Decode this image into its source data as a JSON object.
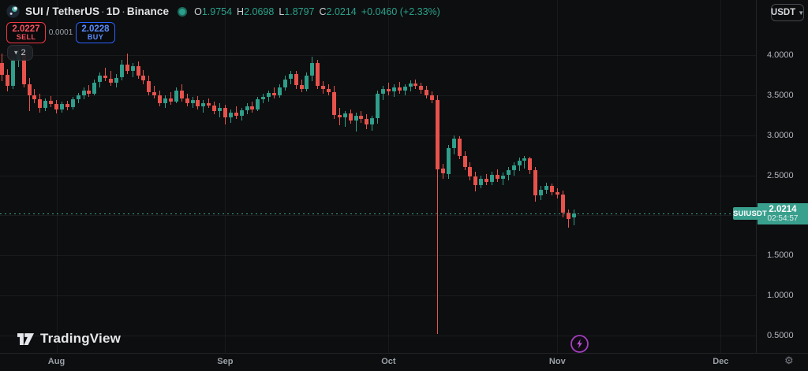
{
  "header": {
    "symbol": "SUI / TetherUS",
    "separator": "·",
    "interval": "1D",
    "exchange": "Binance",
    "ohlc": {
      "o_label": "O",
      "o": "1.9754",
      "h_label": "H",
      "h": "2.0698",
      "l_label": "L",
      "l": "1.8797",
      "c_label": "C",
      "c": "2.0214",
      "change": "+0.0460 (+2.33%)"
    },
    "currency_button_label": "USDT"
  },
  "trade_panel": {
    "sell_price": "2.0227",
    "sell_label": "SELL",
    "spread": "0.0001",
    "buy_price": "2.0228",
    "buy_label": "BUY",
    "sell_color": "#f23645",
    "buy_color": "#2962ff"
  },
  "toolbar": {
    "collapse_count": "2"
  },
  "footer": {
    "logo_text": "TradingView"
  },
  "chart_data": {
    "type": "candlestick",
    "title": "SUI / TetherUS · 1D · Binance",
    "symbol": "SUIUSDT",
    "interval": "1D",
    "up_color": "#2f9e8b",
    "down_color": "#e8524c",
    "accent_teal": "#3aa08e",
    "marker_purple": "#a43ec0",
    "grid_on": true,
    "price_axis": {
      "ticks": [
        {
          "label": "4.0000",
          "value": 4.0
        },
        {
          "label": "3.5000",
          "value": 3.5
        },
        {
          "label": "3.0000",
          "value": 3.0
        },
        {
          "label": "2.5000",
          "value": 2.5
        },
        {
          "label": "1.5000",
          "value": 1.5
        },
        {
          "label": "1.0000",
          "value": 1.0
        },
        {
          "label": "0.5000",
          "value": 0.5
        }
      ],
      "grid_values": [
        4.0,
        3.5,
        3.0,
        2.5,
        2.0,
        1.5,
        1.0,
        0.5
      ],
      "visible_range": [
        0.35,
        4.15
      ]
    },
    "time_axis": {
      "months": [
        {
          "label": "Aug",
          "day_index": 10
        },
        {
          "label": "Sep",
          "day_index": 41
        },
        {
          "label": "Oct",
          "day_index": 71
        },
        {
          "label": "Nov",
          "day_index": 102
        },
        {
          "label": "Dec",
          "day_index": 132
        }
      ]
    },
    "last_price": {
      "ticker": "SUIUSDT",
      "price_label": "2.0214",
      "value": 2.0214,
      "countdown": "02:54:57"
    },
    "candles": [
      [
        "Jul 22",
        3.9,
        4.02,
        3.68,
        3.75
      ],
      [
        "Jul 23",
        3.75,
        3.82,
        3.55,
        3.62
      ],
      [
        "Jul 24",
        3.62,
        3.98,
        3.58,
        3.93
      ],
      [
        "Jul 25",
        3.93,
        4.08,
        3.85,
        4.02
      ],
      [
        "Jul 26",
        4.02,
        4.06,
        3.6,
        3.64
      ],
      [
        "Jul 27",
        3.64,
        3.72,
        3.3,
        3.5
      ],
      [
        "Jul 28",
        3.5,
        3.58,
        3.4,
        3.45
      ],
      [
        "Jul 29",
        3.45,
        3.52,
        3.28,
        3.34
      ],
      [
        "Jul 30",
        3.34,
        3.46,
        3.3,
        3.43
      ],
      [
        "Jul 31",
        3.43,
        3.49,
        3.35,
        3.39
      ],
      [
        "Aug 1",
        3.39,
        3.44,
        3.27,
        3.32
      ],
      [
        "Aug 2",
        3.32,
        3.42,
        3.28,
        3.39
      ],
      [
        "Aug 3",
        3.39,
        3.43,
        3.31,
        3.35
      ],
      [
        "Aug 4",
        3.35,
        3.48,
        3.32,
        3.45
      ],
      [
        "Aug 5",
        3.45,
        3.53,
        3.4,
        3.5
      ],
      [
        "Aug 6",
        3.5,
        3.6,
        3.45,
        3.56
      ],
      [
        "Aug 7",
        3.56,
        3.63,
        3.48,
        3.52
      ],
      [
        "Aug 8",
        3.52,
        3.7,
        3.5,
        3.66
      ],
      [
        "Aug 9",
        3.66,
        3.78,
        3.6,
        3.74
      ],
      [
        "Aug 10",
        3.74,
        3.84,
        3.68,
        3.71
      ],
      [
        "Aug 11",
        3.71,
        3.8,
        3.62,
        3.66
      ],
      [
        "Aug 12",
        3.66,
        3.76,
        3.6,
        3.72
      ],
      [
        "Aug 13",
        3.72,
        3.94,
        3.68,
        3.88
      ],
      [
        "Aug 14",
        3.88,
        4.02,
        3.76,
        3.8
      ],
      [
        "Aug 15",
        3.8,
        3.9,
        3.72,
        3.86
      ],
      [
        "Aug 16",
        3.86,
        3.92,
        3.7,
        3.74
      ],
      [
        "Aug 17",
        3.74,
        3.81,
        3.64,
        3.68
      ],
      [
        "Aug 18",
        3.68,
        3.74,
        3.5,
        3.54
      ],
      [
        "Aug 19",
        3.54,
        3.62,
        3.46,
        3.5
      ],
      [
        "Aug 20",
        3.5,
        3.56,
        3.36,
        3.4
      ],
      [
        "Aug 21",
        3.4,
        3.5,
        3.34,
        3.46
      ],
      [
        "Aug 22",
        3.46,
        3.54,
        3.38,
        3.42
      ],
      [
        "Aug 23",
        3.42,
        3.6,
        3.4,
        3.56
      ],
      [
        "Aug 24",
        3.56,
        3.64,
        3.42,
        3.46
      ],
      [
        "Aug 25",
        3.46,
        3.52,
        3.36,
        3.4
      ],
      [
        "Aug 26",
        3.4,
        3.48,
        3.34,
        3.44
      ],
      [
        "Aug 27",
        3.44,
        3.49,
        3.32,
        3.36
      ],
      [
        "Aug 28",
        3.36,
        3.44,
        3.28,
        3.4
      ],
      [
        "Aug 29",
        3.4,
        3.46,
        3.34,
        3.37
      ],
      [
        "Aug 30",
        3.37,
        3.42,
        3.26,
        3.3
      ],
      [
        "Aug 31",
        3.3,
        3.4,
        3.22,
        3.34
      ],
      [
        "Sep 1",
        3.34,
        3.38,
        3.13,
        3.22
      ],
      [
        "Sep 2",
        3.22,
        3.32,
        3.15,
        3.28
      ],
      [
        "Sep 3",
        3.28,
        3.36,
        3.2,
        3.24
      ],
      [
        "Sep 4",
        3.24,
        3.34,
        3.18,
        3.31
      ],
      [
        "Sep 5",
        3.31,
        3.4,
        3.26,
        3.36
      ],
      [
        "Sep 6",
        3.36,
        3.42,
        3.28,
        3.32
      ],
      [
        "Sep 7",
        3.32,
        3.48,
        3.3,
        3.45
      ],
      [
        "Sep 8",
        3.45,
        3.52,
        3.4,
        3.48
      ],
      [
        "Sep 9",
        3.48,
        3.56,
        3.42,
        3.53
      ],
      [
        "Sep 10",
        3.53,
        3.6,
        3.46,
        3.5
      ],
      [
        "Sep 11",
        3.5,
        3.64,
        3.47,
        3.6
      ],
      [
        "Sep 12",
        3.6,
        3.74,
        3.56,
        3.7
      ],
      [
        "Sep 13",
        3.7,
        3.8,
        3.64,
        3.76
      ],
      [
        "Sep 14",
        3.76,
        3.8,
        3.58,
        3.63
      ],
      [
        "Sep 15",
        3.63,
        3.7,
        3.54,
        3.58
      ],
      [
        "Sep 16",
        3.58,
        3.78,
        3.55,
        3.74
      ],
      [
        "Sep 17",
        3.74,
        3.98,
        3.68,
        3.9
      ],
      [
        "Sep 18",
        3.9,
        3.94,
        3.58,
        3.62
      ],
      [
        "Sep 19",
        3.62,
        3.68,
        3.52,
        3.58
      ],
      [
        "Sep 20",
        3.58,
        3.64,
        3.5,
        3.54
      ],
      [
        "Sep 21",
        3.54,
        3.62,
        3.2,
        3.25
      ],
      [
        "Sep 22",
        3.25,
        3.34,
        3.12,
        3.22
      ],
      [
        "Sep 23",
        3.22,
        3.3,
        3.1,
        3.27
      ],
      [
        "Sep 24",
        3.27,
        3.32,
        3.14,
        3.18
      ],
      [
        "Sep 25",
        3.18,
        3.28,
        3.05,
        3.24
      ],
      [
        "Sep 26",
        3.24,
        3.3,
        3.15,
        3.2
      ],
      [
        "Sep 27",
        3.2,
        3.26,
        3.08,
        3.13
      ],
      [
        "Sep 28",
        3.13,
        3.24,
        3.06,
        3.21
      ],
      [
        "Sep 29",
        3.21,
        3.56,
        3.14,
        3.52
      ],
      [
        "Sep 30",
        3.52,
        3.62,
        3.44,
        3.58
      ],
      [
        "Oct 1",
        3.58,
        3.66,
        3.5,
        3.55
      ],
      [
        "Oct 2",
        3.55,
        3.64,
        3.48,
        3.6
      ],
      [
        "Oct 3",
        3.6,
        3.67,
        3.52,
        3.56
      ],
      [
        "Oct 4",
        3.56,
        3.64,
        3.5,
        3.61
      ],
      [
        "Oct 5",
        3.61,
        3.69,
        3.55,
        3.65
      ],
      [
        "Oct 6",
        3.65,
        3.7,
        3.58,
        3.62
      ],
      [
        "Oct 7",
        3.62,
        3.66,
        3.52,
        3.57
      ],
      [
        "Oct 8",
        3.57,
        3.62,
        3.46,
        3.5
      ],
      [
        "Oct 9",
        3.5,
        3.55,
        3.4,
        3.44
      ],
      [
        "Oct 10",
        3.44,
        3.5,
        0.52,
        2.58
      ],
      [
        "Oct 11",
        2.58,
        2.64,
        2.46,
        2.52
      ],
      [
        "Oct 12",
        2.52,
        2.88,
        2.46,
        2.84
      ],
      [
        "Oct 13",
        2.84,
        3.0,
        2.76,
        2.96
      ],
      [
        "Oct 14",
        2.96,
        2.99,
        2.7,
        2.74
      ],
      [
        "Oct 15",
        2.74,
        2.8,
        2.56,
        2.6
      ],
      [
        "Oct 16",
        2.6,
        2.66,
        2.44,
        2.49
      ],
      [
        "Oct 17",
        2.49,
        2.55,
        2.3,
        2.38
      ],
      [
        "Oct 18",
        2.38,
        2.5,
        2.34,
        2.46
      ],
      [
        "Oct 19",
        2.46,
        2.52,
        2.38,
        2.42
      ],
      [
        "Oct 20",
        2.42,
        2.55,
        2.38,
        2.51
      ],
      [
        "Oct 21",
        2.51,
        2.57,
        2.42,
        2.46
      ],
      [
        "Oct 22",
        2.46,
        2.54,
        2.38,
        2.5
      ],
      [
        "Oct 23",
        2.5,
        2.6,
        2.44,
        2.56
      ],
      [
        "Oct 24",
        2.56,
        2.66,
        2.5,
        2.62
      ],
      [
        "Oct 25",
        2.62,
        2.72,
        2.55,
        2.68
      ],
      [
        "Oct 26",
        2.68,
        2.74,
        2.58,
        2.71
      ],
      [
        "Oct 27",
        2.71,
        2.73,
        2.52,
        2.56
      ],
      [
        "Oct 28",
        2.56,
        2.6,
        2.17,
        2.25
      ],
      [
        "Oct 29",
        2.25,
        2.37,
        2.19,
        2.32
      ],
      [
        "Oct 30",
        2.32,
        2.41,
        2.27,
        2.37
      ],
      [
        "Oct 31",
        2.37,
        2.4,
        2.25,
        2.29
      ],
      [
        "Nov 1",
        2.29,
        2.34,
        2.21,
        2.26
      ],
      [
        "Nov 2",
        2.26,
        2.31,
        1.97,
        2.03
      ],
      [
        "Nov 3",
        2.03,
        2.07,
        1.85,
        1.95
      ],
      [
        "Nov 4",
        1.9754,
        2.0698,
        1.8797,
        2.0214
      ]
    ]
  }
}
